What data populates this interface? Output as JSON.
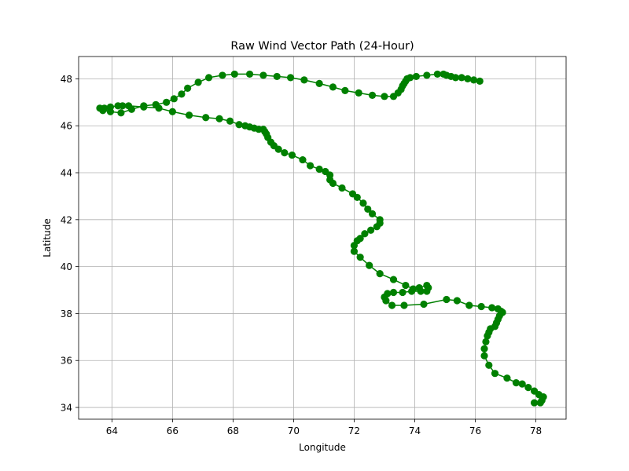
{
  "chart_data": {
    "type": "line",
    "title": "Raw Wind Vector Path (24-Hour)",
    "xlabel": "Longitude",
    "ylabel": "Latitude",
    "xlim": [
      62.9,
      79.0
    ],
    "ylim": [
      33.5,
      48.95
    ],
    "xticks": [
      64,
      66,
      68,
      70,
      72,
      74,
      76,
      78
    ],
    "yticks": [
      34,
      36,
      38,
      40,
      42,
      44,
      46,
      48
    ],
    "grid": true,
    "marker": "circle",
    "colors": {
      "series": "#008000",
      "grid": "#b0b0b0",
      "axes": "#000000"
    },
    "series": [
      {
        "x": [
          78.15,
          77.95,
          78.2,
          78.25,
          78.1,
          77.95,
          77.75,
          77.55,
          77.35,
          77.05,
          76.65,
          76.45,
          76.3,
          76.3,
          76.35,
          76.4,
          76.45,
          76.5,
          76.65,
          76.7,
          76.75,
          76.8,
          76.9,
          76.85,
          76.75,
          76.55,
          76.2,
          75.8,
          75.4,
          75.05,
          74.3,
          73.65,
          73.25,
          73.05,
          73.0,
          73.1,
          73.3,
          73.6,
          73.9,
          74.2,
          74.4,
          74.45,
          74.4,
          74.15,
          73.95,
          73.7,
          73.3,
          72.85,
          72.5,
          72.2,
          72.0,
          72.0,
          72.1,
          72.2,
          72.35,
          72.55,
          72.75,
          72.85,
          72.85,
          72.6,
          72.45,
          72.3,
          72.1,
          71.95,
          71.6,
          71.3,
          71.2,
          71.2,
          71.05,
          70.85,
          70.55,
          70.3,
          69.95,
          69.7,
          69.5,
          69.35,
          69.25,
          69.15,
          69.1,
          69.05,
          69.0,
          68.85,
          68.7,
          68.55,
          68.4,
          68.2,
          67.9,
          67.55,
          67.1,
          66.55,
          66.0,
          65.55,
          65.05,
          64.55,
          64.35,
          64.2,
          63.95,
          63.75,
          63.6,
          63.7,
          63.95,
          64.3,
          64.65,
          65.05,
          65.45,
          65.8,
          66.05,
          66.3,
          66.5,
          66.85,
          67.2,
          67.65,
          68.05,
          68.55,
          69.0,
          69.45,
          69.9,
          70.35,
          70.85,
          71.3,
          71.7,
          72.15,
          72.6,
          73.0,
          73.3,
          73.45,
          73.55,
          73.6,
          73.65,
          73.7,
          73.75,
          73.85,
          74.05,
          74.4,
          74.75,
          74.95,
          75.05,
          75.2,
          75.35,
          75.55,
          75.75,
          75.95,
          76.15
        ],
        "y": [
          34.2,
          34.2,
          34.3,
          34.45,
          34.55,
          34.7,
          34.85,
          35.0,
          35.05,
          35.25,
          35.45,
          35.8,
          36.2,
          36.5,
          36.8,
          37.05,
          37.2,
          37.35,
          37.45,
          37.6,
          37.75,
          37.9,
          38.05,
          38.1,
          38.2,
          38.25,
          38.3,
          38.35,
          38.55,
          38.6,
          38.4,
          38.35,
          38.35,
          38.55,
          38.7,
          38.85,
          38.9,
          38.9,
          38.95,
          38.95,
          38.95,
          39.1,
          39.2,
          39.1,
          39.05,
          39.2,
          39.45,
          39.7,
          40.05,
          40.4,
          40.65,
          40.9,
          41.1,
          41.2,
          41.4,
          41.55,
          41.7,
          41.85,
          42.0,
          42.25,
          42.45,
          42.7,
          42.95,
          43.1,
          43.35,
          43.55,
          43.7,
          43.9,
          44.05,
          44.15,
          44.3,
          44.55,
          44.75,
          44.85,
          45.0,
          45.15,
          45.3,
          45.5,
          45.65,
          45.75,
          45.85,
          45.85,
          45.9,
          45.95,
          46.0,
          46.05,
          46.2,
          46.3,
          46.35,
          46.45,
          46.6,
          46.75,
          46.8,
          46.85,
          46.85,
          46.85,
          46.8,
          46.75,
          46.75,
          46.65,
          46.6,
          46.55,
          46.7,
          46.85,
          46.9,
          47.0,
          47.15,
          47.35,
          47.6,
          47.85,
          48.05,
          48.15,
          48.2,
          48.2,
          48.15,
          48.1,
          48.05,
          47.95,
          47.8,
          47.65,
          47.5,
          47.4,
          47.3,
          47.25,
          47.25,
          47.4,
          47.55,
          47.7,
          47.8,
          47.9,
          48.0,
          48.05,
          48.1,
          48.15,
          48.2,
          48.2,
          48.15,
          48.1,
          48.05,
          48.05,
          48.0,
          47.95,
          47.9
        ]
      }
    ]
  }
}
